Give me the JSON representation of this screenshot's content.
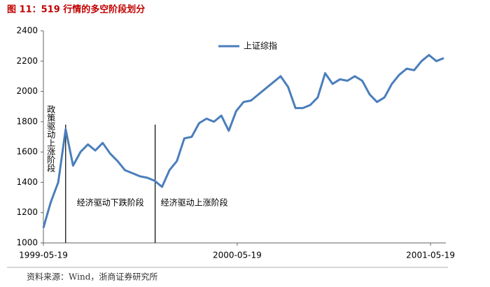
{
  "chart_data": {
    "type": "line",
    "title": "图 11：519 行情的多空阶段划分",
    "source": "资料来源：Wind，浙商证券研究所",
    "x": [
      "1999-05-19",
      "1999-06-02",
      "1999-06-16",
      "1999-06-30",
      "1999-07-14",
      "1999-07-28",
      "1999-08-11",
      "1999-08-25",
      "1999-09-08",
      "1999-09-22",
      "1999-10-06",
      "1999-10-20",
      "1999-11-03",
      "1999-11-17",
      "1999-12-01",
      "1999-12-15",
      "1999-12-29",
      "2000-01-12",
      "2000-01-26",
      "2000-02-09",
      "2000-02-23",
      "2000-03-08",
      "2000-03-22",
      "2000-04-05",
      "2000-04-19",
      "2000-05-03",
      "2000-05-17",
      "2000-05-31",
      "2000-06-14",
      "2000-06-28",
      "2000-07-12",
      "2000-07-26",
      "2000-08-09",
      "2000-08-23",
      "2000-09-06",
      "2000-09-20",
      "2000-10-04",
      "2000-10-18",
      "2000-11-01",
      "2000-11-15",
      "2000-11-29",
      "2000-12-13",
      "2000-12-27",
      "2001-01-10",
      "2001-01-24",
      "2001-02-07",
      "2001-02-21",
      "2001-03-07",
      "2001-03-21",
      "2001-04-04",
      "2001-04-18",
      "2001-05-02",
      "2001-05-16",
      "2001-05-30",
      "2001-06-13"
    ],
    "series": [
      {
        "name": "上证综指",
        "color": "#4a7ebb",
        "values": [
          1100,
          1270,
          1400,
          1750,
          1510,
          1600,
          1650,
          1610,
          1660,
          1590,
          1540,
          1480,
          1460,
          1440,
          1430,
          1410,
          1370,
          1480,
          1540,
          1690,
          1700,
          1790,
          1820,
          1800,
          1840,
          1740,
          1870,
          1930,
          1940,
          1980,
          2020,
          2060,
          2100,
          2030,
          1890,
          1890,
          1910,
          1960,
          2120,
          2050,
          2080,
          2070,
          2100,
          2070,
          1980,
          1930,
          1960,
          2050,
          2110,
          2150,
          2140,
          2200,
          2240,
          2200,
          2220
        ]
      }
    ],
    "xlim": [
      "1999-05-19",
      "2001-06-17"
    ],
    "xticks": [
      "1999-05-19",
      "2000-05-19",
      "2001-05-19"
    ],
    "ylim": [
      1000,
      2400
    ],
    "yticks": [
      1000,
      1200,
      1400,
      1600,
      1800,
      2000,
      2200,
      2400
    ],
    "phase_lines": [
      "1999-06-30",
      "1999-12-16"
    ],
    "phase_labels": [
      "政策驱动上涨阶段",
      "经济驱动下跌阶段",
      "经济驱动上涨阶段"
    ]
  }
}
